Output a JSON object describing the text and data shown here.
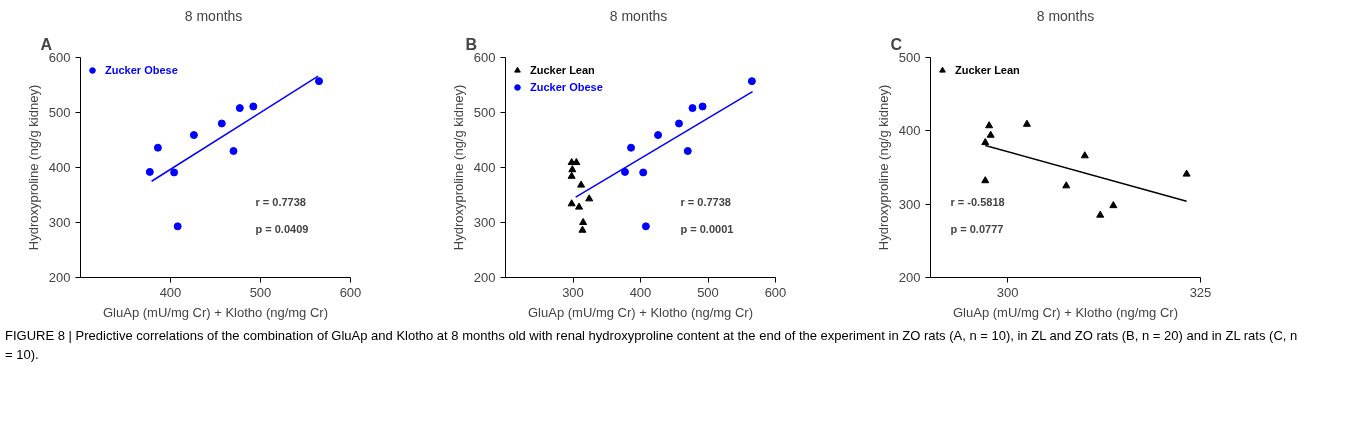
{
  "chart_data": [
    {
      "type": "scatter",
      "title": "8  months",
      "xlabel": "GluAp (mU/mg Cr) + Klotho (ng/mg Cr)",
      "ylabel": "Hydroxyproline (ng/g kidney)",
      "xlim": [
        300,
        600
      ],
      "xticks": [
        400,
        500,
        600
      ],
      "ylim": [
        200,
        600
      ],
      "yticks": [
        200,
        300,
        400,
        500,
        600
      ],
      "grid": false,
      "legend": "top left",
      "annotations": [
        "A",
        "r = 0.7738",
        "p = 0.0409"
      ],
      "series": [
        {
          "name": "Zucker Obese",
          "color": "#0000ff",
          "marker": "circle",
          "x": [
            377,
            386,
            404,
            408,
            426,
            457,
            470,
            477,
            492,
            565
          ],
          "values": [
            392,
            436,
            391,
            293,
            459,
            480,
            430,
            508,
            511,
            557
          ]
        },
        {
          "type": "line",
          "color": "#0000ff",
          "x": [
            379,
            564
          ],
          "values": [
            375,
            566
          ]
        }
      ]
    },
    {
      "type": "scatter",
      "title": "8  months",
      "xlabel": "GluAp (mU/mg Cr) + Klotho (ng/mg Cr)",
      "ylabel": "Hydroxyproline (ng/g kidney)",
      "xlim": [
        200,
        600
      ],
      "xticks": [
        300,
        400,
        500,
        600
      ],
      "ylim": [
        200,
        600
      ],
      "yticks": [
        200,
        300,
        400,
        500,
        600
      ],
      "grid": false,
      "legend": "top left",
      "annotations": [
        "B",
        "r = 0.7738",
        "p = 0.0001"
      ],
      "series": [
        {
          "name": "Zucker Lean",
          "color": "#000000",
          "marker": "triangle",
          "x": [
            298,
            305,
            299,
            298,
            312,
            298,
            309,
            324,
            315,
            314
          ],
          "values": [
            409,
            409,
            396,
            384,
            368,
            334,
            328,
            343,
            300,
            286
          ]
        },
        {
          "name": "Zucker Obese",
          "color": "#0000ff",
          "marker": "circle",
          "x": [
            377,
            386,
            404,
            408,
            426,
            457,
            470,
            477,
            492,
            565
          ],
          "values": [
            392,
            436,
            391,
            293,
            459,
            480,
            430,
            508,
            511,
            557
          ]
        },
        {
          "type": "line",
          "color": "#0000ff",
          "x": [
            304,
            566
          ],
          "values": [
            346,
            538
          ]
        }
      ]
    },
    {
      "type": "scatter",
      "title": "8 months",
      "xlabel": "GluAp (mU/mg Cr) + Klotho (ng/mg Cr)",
      "ylabel": "Hydroxyproline (ng/g kidney)",
      "xlim": [
        290,
        325
      ],
      "xticks": [
        300,
        325
      ],
      "ylim": [
        200,
        500
      ],
      "yticks": [
        200,
        300,
        400,
        500
      ],
      "grid": false,
      "legend": "top left",
      "annotations": [
        "C",
        "r = -0.5818",
        "p = 0.0777"
      ],
      "series": [
        {
          "name": "Zucker Lean",
          "color": "#000000",
          "marker": "triangle",
          "x": [
            297.1,
            297.6,
            297.8,
            297.1,
            302.5,
            310.0,
            307.6,
            312.0,
            313.7,
            323.2
          ],
          "values": [
            384,
            407,
            394,
            332,
            409,
            366,
            325,
            285,
            298,
            341
          ]
        },
        {
          "type": "line",
          "color": "#000000",
          "x": [
            297.1,
            323.2
          ],
          "values": [
            380,
            304
          ]
        }
      ]
    },
    {
      "type": "other",
      "annotations": [
        "FIGURE 8 | Predictive correlations of the combination of GluAp and Klotho at 8 months old with renal hydroxyproline content at the end of the experiment in ZO rats (A, n = 10), in ZL and ZO rats (B, n = 20) and in ZL rats (C, n = 10)."
      ]
    }
  ]
}
